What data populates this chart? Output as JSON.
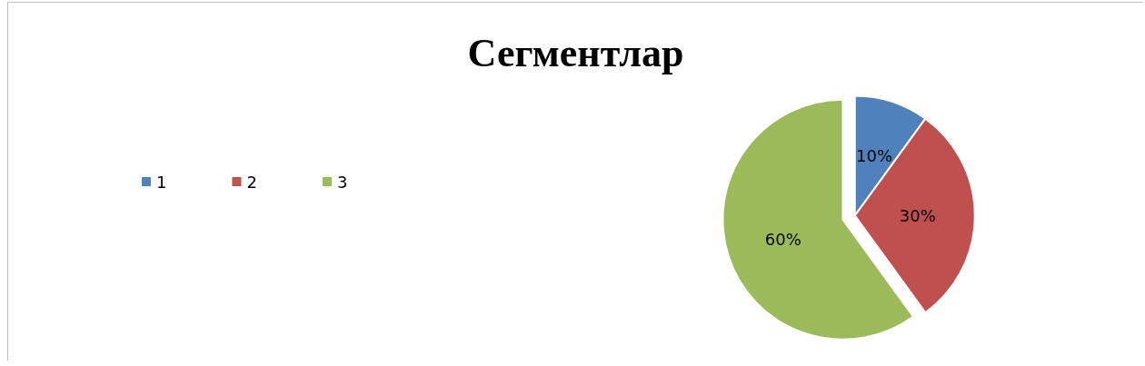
{
  "chart_data": {
    "type": "pie",
    "title": "Сегментлар",
    "categories": [
      "1",
      "2",
      "3"
    ],
    "values": [
      10,
      30,
      60
    ],
    "colors": [
      "#4f81bd",
      "#c0504d",
      "#9bbb59"
    ],
    "value_labels": [
      "10%",
      "30%",
      "60%"
    ],
    "legend": "left"
  }
}
